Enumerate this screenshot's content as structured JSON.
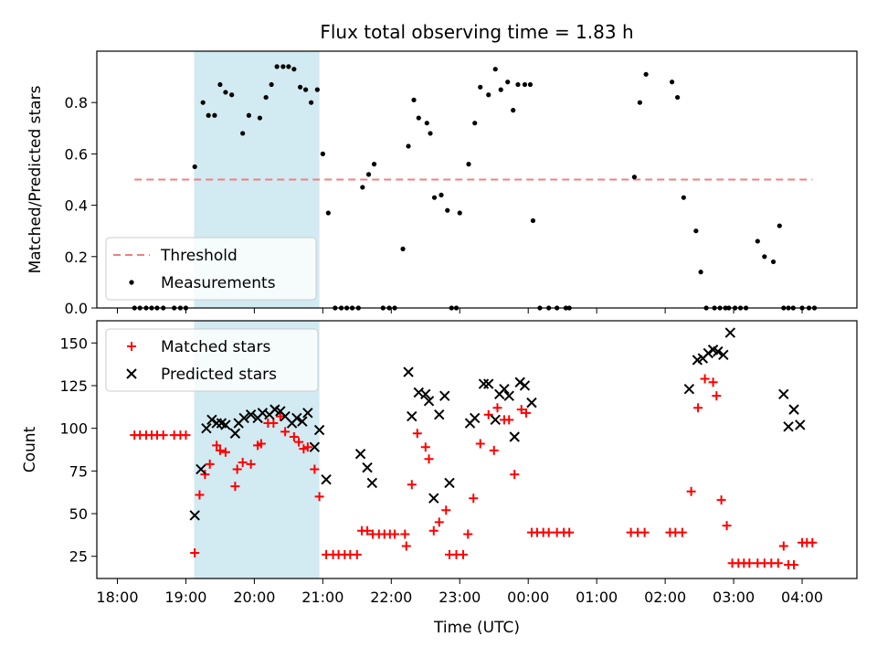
{
  "title": "Flux total observing time = 1.83 h",
  "colors": {
    "threshold": "#f08080",
    "measurements": "#000000",
    "matched": "#ff0000",
    "predicted": "#000000",
    "span": "#add8e6"
  },
  "chart_data": [
    {
      "type": "scatter",
      "panel": "top",
      "ylabel": "Matched/Predicted stars",
      "ylim": [
        0,
        1.0
      ],
      "yticks": [
        0.0,
        0.2,
        0.4,
        0.6,
        0.8
      ],
      "ytick_labels": [
        "0.0",
        "0.2",
        "0.4",
        "0.6",
        "0.8"
      ],
      "xlim_hours": [
        17.7,
        28.8
      ],
      "highlight_span_hours": [
        19.12,
        20.95
      ],
      "legend": {
        "position": "lower-left",
        "entries": [
          "Threshold",
          "Measurements"
        ]
      },
      "threshold": {
        "name": "Threshold",
        "y": 0.5,
        "x_start_hours": 18.25,
        "x_end_hours": 28.15
      },
      "series": [
        {
          "name": "Measurements",
          "x_hours": [
            18.25,
            18.33,
            18.42,
            18.5,
            18.58,
            18.67,
            18.83,
            18.92,
            19.0,
            19.13,
            19.25,
            19.33,
            19.42,
            19.5,
            19.58,
            19.67,
            19.83,
            19.92,
            20.08,
            20.17,
            20.25,
            20.33,
            20.42,
            20.5,
            20.58,
            20.67,
            20.75,
            20.83,
            20.92,
            21.0,
            21.08,
            21.18,
            21.27,
            21.35,
            21.43,
            21.52,
            21.58,
            21.67,
            21.75,
            21.88,
            21.97,
            22.05,
            22.17,
            22.25,
            22.33,
            22.4,
            22.52,
            22.57,
            22.63,
            22.73,
            22.82,
            22.88,
            22.95,
            23.0,
            23.13,
            23.22,
            23.3,
            23.42,
            23.52,
            23.6,
            23.7,
            23.78,
            23.85,
            23.95,
            24.03,
            24.07,
            24.17,
            24.3,
            24.42,
            24.55,
            24.6,
            25.55,
            25.63,
            25.72,
            26.1,
            26.18,
            26.27,
            26.45,
            26.52,
            26.6,
            26.72,
            26.8,
            26.88,
            26.93,
            27.02,
            27.1,
            27.18,
            27.35,
            27.45,
            27.58,
            27.67,
            27.73,
            27.8,
            27.87,
            28.0,
            28.1,
            28.18
          ],
          "y": [
            0,
            0,
            0,
            0,
            0,
            0,
            0,
            0,
            0,
            0.55,
            0.8,
            0.75,
            0.75,
            0.87,
            0.84,
            0.83,
            0.68,
            0.75,
            0.74,
            0.82,
            0.87,
            0.94,
            0.94,
            0.94,
            0.93,
            0.86,
            0.85,
            0.8,
            0.85,
            0.6,
            0.37,
            0,
            0,
            0,
            0,
            0,
            0.47,
            0.52,
            0.56,
            0,
            0,
            0,
            0.23,
            0.63,
            0.81,
            0.74,
            0.72,
            0.68,
            0.43,
            0.44,
            0.38,
            0,
            0,
            0.37,
            0.56,
            0.72,
            0.86,
            0.83,
            0.93,
            0.85,
            0.88,
            0.77,
            0.87,
            0.87,
            0.87,
            0.34,
            0,
            0,
            0,
            0,
            0,
            0.51,
            0.8,
            0.91,
            0.88,
            0.82,
            0.43,
            0.3,
            0.14,
            0,
            0,
            0,
            0,
            0,
            0,
            0,
            0,
            0.26,
            0.2,
            0.18,
            0.32,
            0,
            0,
            0,
            0,
            0,
            0
          ]
        }
      ]
    },
    {
      "type": "scatter",
      "panel": "bottom",
      "ylabel": "Count",
      "xlabel": "Time (UTC)",
      "ylim": [
        12,
        163
      ],
      "yticks": [
        25,
        50,
        75,
        100,
        125,
        150
      ],
      "ytick_labels": [
        "25",
        "50",
        "75",
        "100",
        "125",
        "150"
      ],
      "xlim_hours": [
        17.7,
        28.8
      ],
      "xticks_hours": [
        18,
        19,
        20,
        21,
        22,
        23,
        24,
        25,
        26,
        27,
        28
      ],
      "xtick_labels": [
        "18:00",
        "19:00",
        "20:00",
        "21:00",
        "22:00",
        "23:00",
        "00:00",
        "01:00",
        "02:00",
        "03:00",
        "04:00"
      ],
      "highlight_span_hours": [
        19.12,
        20.95
      ],
      "legend": {
        "position": "upper-left",
        "entries": [
          "Matched stars",
          "Predicted stars"
        ]
      },
      "series": [
        {
          "name": "Matched stars",
          "marker": "plus",
          "points": [
            [
              18.25,
              96
            ],
            [
              18.33,
              96
            ],
            [
              18.42,
              96
            ],
            [
              18.5,
              96
            ],
            [
              18.58,
              96
            ],
            [
              18.67,
              96
            ],
            [
              18.83,
              96
            ],
            [
              18.92,
              96
            ],
            [
              19.0,
              96
            ],
            [
              19.13,
              27
            ],
            [
              19.2,
              61
            ],
            [
              19.28,
              73
            ],
            [
              19.35,
              79
            ],
            [
              19.45,
              90
            ],
            [
              19.5,
              87
            ],
            [
              19.58,
              86
            ],
            [
              19.72,
              66
            ],
            [
              19.75,
              76
            ],
            [
              19.83,
              80
            ],
            [
              19.95,
              79
            ],
            [
              20.05,
              90
            ],
            [
              20.1,
              91
            ],
            [
              20.2,
              103
            ],
            [
              20.28,
              103
            ],
            [
              20.38,
              107
            ],
            [
              20.45,
              98
            ],
            [
              20.58,
              95
            ],
            [
              20.65,
              92
            ],
            [
              20.72,
              88
            ],
            [
              20.78,
              89
            ],
            [
              20.88,
              76
            ],
            [
              20.95,
              60
            ],
            [
              21.05,
              26
            ],
            [
              21.15,
              26
            ],
            [
              21.23,
              26
            ],
            [
              21.32,
              26
            ],
            [
              21.4,
              26
            ],
            [
              21.5,
              26
            ],
            [
              21.57,
              40
            ],
            [
              21.65,
              40
            ],
            [
              21.73,
              38
            ],
            [
              21.82,
              38
            ],
            [
              21.9,
              38
            ],
            [
              21.98,
              38
            ],
            [
              22.05,
              38
            ],
            [
              22.2,
              38
            ],
            [
              22.22,
              31
            ],
            [
              22.3,
              67
            ],
            [
              22.38,
              97
            ],
            [
              22.5,
              89
            ],
            [
              22.55,
              82
            ],
            [
              22.62,
              40
            ],
            [
              22.7,
              45
            ],
            [
              22.8,
              52
            ],
            [
              22.85,
              26
            ],
            [
              22.95,
              26
            ],
            [
              23.05,
              26
            ],
            [
              23.12,
              38
            ],
            [
              23.2,
              59
            ],
            [
              23.3,
              91
            ],
            [
              23.42,
              108
            ],
            [
              23.5,
              87
            ],
            [
              23.55,
              112
            ],
            [
              23.65,
              105
            ],
            [
              23.72,
              105
            ],
            [
              23.8,
              73
            ],
            [
              23.9,
              111
            ],
            [
              23.97,
              109
            ],
            [
              24.05,
              39
            ],
            [
              24.13,
              39
            ],
            [
              24.22,
              39
            ],
            [
              24.3,
              39
            ],
            [
              24.42,
              39
            ],
            [
              24.52,
              39
            ],
            [
              24.6,
              39
            ],
            [
              25.5,
              39
            ],
            [
              25.6,
              39
            ],
            [
              25.7,
              39
            ],
            [
              26.07,
              39
            ],
            [
              26.15,
              39
            ],
            [
              26.25,
              39
            ],
            [
              26.38,
              63
            ],
            [
              26.48,
              112
            ],
            [
              26.58,
              129
            ],
            [
              26.7,
              127
            ],
            [
              26.75,
              119
            ],
            [
              26.82,
              58
            ],
            [
              26.9,
              43
            ],
            [
              26.98,
              21
            ],
            [
              27.07,
              21
            ],
            [
              27.15,
              21
            ],
            [
              27.23,
              21
            ],
            [
              27.35,
              21
            ],
            [
              27.45,
              21
            ],
            [
              27.55,
              21
            ],
            [
              27.65,
              21
            ],
            [
              27.73,
              31
            ],
            [
              27.8,
              20
            ],
            [
              27.88,
              20
            ],
            [
              28.0,
              33
            ],
            [
              28.07,
              33
            ],
            [
              28.15,
              33
            ]
          ]
        },
        {
          "name": "Predicted stars",
          "marker": "x",
          "points": [
            [
              19.13,
              49
            ],
            [
              19.22,
              76
            ],
            [
              19.3,
              100
            ],
            [
              19.38,
              105
            ],
            [
              19.45,
              103
            ],
            [
              19.52,
              103
            ],
            [
              19.58,
              102
            ],
            [
              19.72,
              97
            ],
            [
              19.77,
              103
            ],
            [
              19.85,
              106
            ],
            [
              19.95,
              108
            ],
            [
              20.05,
              106
            ],
            [
              20.12,
              109
            ],
            [
              20.22,
              108
            ],
            [
              20.3,
              111
            ],
            [
              20.38,
              110
            ],
            [
              20.45,
              107
            ],
            [
              20.55,
              103
            ],
            [
              20.62,
              106
            ],
            [
              20.7,
              104
            ],
            [
              20.78,
              109
            ],
            [
              20.88,
              89
            ],
            [
              20.95,
              99
            ],
            [
              21.05,
              70
            ],
            [
              21.55,
              85
            ],
            [
              21.65,
              77
            ],
            [
              21.72,
              68
            ],
            [
              22.25,
              133
            ],
            [
              22.3,
              107
            ],
            [
              22.4,
              121
            ],
            [
              22.5,
              120
            ],
            [
              22.55,
              116
            ],
            [
              22.62,
              59
            ],
            [
              22.7,
              108
            ],
            [
              22.78,
              119
            ],
            [
              22.85,
              68
            ],
            [
              23.15,
              103
            ],
            [
              23.22,
              106
            ],
            [
              23.35,
              126
            ],
            [
              23.42,
              126
            ],
            [
              23.52,
              105
            ],
            [
              23.58,
              120
            ],
            [
              23.65,
              123
            ],
            [
              23.72,
              119
            ],
            [
              23.8,
              95
            ],
            [
              23.88,
              127
            ],
            [
              23.95,
              125
            ],
            [
              24.05,
              115
            ],
            [
              26.35,
              123
            ],
            [
              26.47,
              140
            ],
            [
              26.55,
              141
            ],
            [
              26.63,
              144
            ],
            [
              26.7,
              146
            ],
            [
              26.77,
              145
            ],
            [
              26.85,
              143
            ],
            [
              26.95,
              156
            ],
            [
              27.73,
              120
            ],
            [
              27.8,
              101
            ],
            [
              27.88,
              111
            ],
            [
              27.97,
              102
            ]
          ]
        }
      ]
    }
  ]
}
